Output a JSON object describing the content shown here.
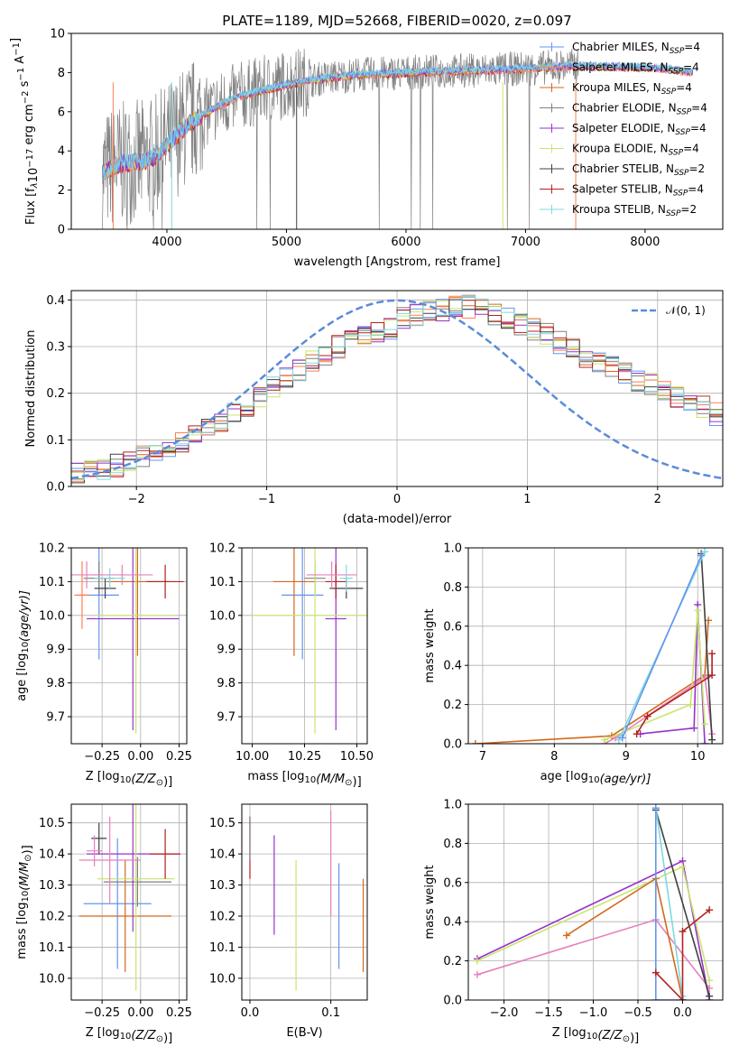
{
  "figure": {
    "title": "PLATE=1189, MJD=52668, FIBERID=0020, z=0.097"
  },
  "colors": {
    "Chabrier MILES": "#6495ed",
    "Salpeter MILES": "#ff7f50",
    "Kroupa MILES": "#d2691e",
    "Chabrier ELODIE": "#808080",
    "Salpeter ELODIE": "#9932cc",
    "Kroupa ELODIE": "#c8e66e",
    "Chabrier STELIB": "#404040",
    "Salpeter STELIB": "#b22222",
    "Kroupa STELIB": "#7fd8e0",
    "observed": "#808080",
    "extra_pink": "#e87fbf",
    "normal_curve": "#5b8bd8",
    "grid": "#b0b0b0"
  },
  "chart_data": [
    {
      "type": "line",
      "name": "spectrum",
      "xlabel": "wavelength [Angstrom, rest frame]",
      "ylabel": "Flux [f",
      "ylabel_parts": [
        "λ",
        "10",
        "−17",
        " erg cm",
        "−2",
        " s",
        "−1",
        " A",
        "−1",
        "]"
      ],
      "xlim": [
        3200,
        8650
      ],
      "ylim": [
        0,
        10
      ],
      "xticks": [
        "4000",
        "5000",
        "6000",
        "7000",
        "8000"
      ],
      "yticks": [
        "0",
        "2",
        "4",
        "6",
        "8",
        "10"
      ],
      "legend_position": "top-right",
      "legend": [
        {
          "name": "Chabrier MILES",
          "n": "4",
          "color": "#6495ed"
        },
        {
          "name": "Salpeter MILES",
          "n": "4",
          "color": "#ff7f50"
        },
        {
          "name": "Kroupa MILES",
          "n": "4",
          "color": "#d2691e"
        },
        {
          "name": "Chabrier ELODIE",
          "n": "4",
          "color": "#808080"
        },
        {
          "name": "Salpeter ELODIE",
          "n": "4",
          "color": "#9932cc"
        },
        {
          "name": "Kroupa ELODIE",
          "n": "4",
          "color": "#c8e66e"
        },
        {
          "name": "Chabrier STELIB",
          "n": "2",
          "color": "#404040"
        },
        {
          "name": "Salpeter STELIB",
          "n": "4",
          "color": "#b22222"
        },
        {
          "name": "Kroupa STELIB",
          "n": "2",
          "color": "#7fd8e0"
        }
      ],
      "legend_sub": "SSP",
      "continuum": [
        [
          3450,
          2.8
        ],
        [
          3550,
          3.2
        ],
        [
          3650,
          3.4
        ],
        [
          3800,
          3.5
        ],
        [
          3900,
          3.7
        ],
        [
          4000,
          4.3
        ],
        [
          4200,
          5.5
        ],
        [
          4400,
          6.2
        ],
        [
          4600,
          6.8
        ],
        [
          4800,
          7.1
        ],
        [
          5000,
          7.4
        ],
        [
          5300,
          7.7
        ],
        [
          5600,
          7.9
        ],
        [
          6000,
          8.0
        ],
        [
          6500,
          8.1
        ],
        [
          7000,
          8.2
        ],
        [
          7400,
          8.35
        ],
        [
          7800,
          8.3
        ],
        [
          8200,
          8.2
        ],
        [
          8400,
          8.0
        ]
      ]
    },
    {
      "type": "bar",
      "name": "residual-histogram",
      "xlabel": "(data-model)/error",
      "ylabel": "Normed distribution",
      "xlim": [
        -2.5,
        2.5
      ],
      "ylim": [
        0,
        0.42
      ],
      "xticks": [
        "−2",
        "−1",
        "0",
        "1",
        "2"
      ],
      "yticks": [
        "0.0",
        "0.1",
        "0.2",
        "0.3",
        "0.4"
      ],
      "bin_width": 0.1,
      "bin_start": -2.5,
      "bins_shape": [
        0.025,
        0.03,
        0.035,
        0.045,
        0.055,
        0.065,
        0.075,
        0.085,
        0.095,
        0.11,
        0.125,
        0.14,
        0.155,
        0.17,
        0.19,
        0.21,
        0.23,
        0.25,
        0.27,
        0.28,
        0.3,
        0.31,
        0.32,
        0.33,
        0.34,
        0.36,
        0.37,
        0.375,
        0.38,
        0.385,
        0.385,
        0.38,
        0.37,
        0.36,
        0.345,
        0.335,
        0.325,
        0.31,
        0.295,
        0.28,
        0.27,
        0.255,
        0.245,
        0.23,
        0.22,
        0.205,
        0.19,
        0.18,
        0.17,
        0.155,
        0.14
      ],
      "legend": [
        {
          "name": "𝒩(0, 1)",
          "color": "#5b8bd8",
          "style": "dashed"
        }
      ],
      "legend_position": "top-right"
    },
    {
      "type": "scatter",
      "name": "age-vs-Z",
      "xlabel": "Z [log",
      "xlabel_parts": [
        "10",
        "(Z/Z",
        "⊙",
        ")]"
      ],
      "ylabel": "age  [log",
      "ylabel_parts": [
        "10",
        "(age/yr)]"
      ],
      "xlim": [
        -0.45,
        0.3
      ],
      "ylim": [
        9.62,
        10.2
      ],
      "xticks": [
        "−0.25",
        "0.00",
        "0.25"
      ],
      "xtick_values": [
        -0.25,
        0.0,
        0.25
      ],
      "yticks": [
        "9.7",
        "9.8",
        "9.9",
        "10.0",
        "10.1",
        "10.2"
      ],
      "ytick_values": [
        9.7,
        9.8,
        9.9,
        10.0,
        10.1,
        10.2
      ],
      "points": [
        {
          "x": -0.27,
          "y": 10.06,
          "xerr": 0.13,
          "yerr": 0.19,
          "color": "#6495ed"
        },
        {
          "x": -0.02,
          "y": 10.1,
          "xerr": 0.2,
          "yerr": 0.22,
          "color": "#d2691e"
        },
        {
          "x": -0.27,
          "y": 10.11,
          "xerr": 0.1,
          "yerr": 0.05,
          "color": "#808080"
        },
        {
          "x": -0.05,
          "y": 9.99,
          "xerr": 0.3,
          "yerr": 0.33,
          "color": "#9932cc"
        },
        {
          "x": -0.03,
          "y": 10.0,
          "xerr": 0.25,
          "yerr": 0.35,
          "color": "#c8e66e"
        },
        {
          "x": -0.23,
          "y": 10.08,
          "xerr": 0.07,
          "yerr": 0.03,
          "color": "#404040"
        },
        {
          "x": 0.16,
          "y": 10.1,
          "xerr": 0.12,
          "yerr": 0.05,
          "color": "#b22222"
        },
        {
          "x": -0.35,
          "y": 10.12,
          "xerr": 0.1,
          "yerr": 0.04,
          "color": "#e87fbf"
        },
        {
          "x": -0.12,
          "y": 10.12,
          "xerr": 0.2,
          "yerr": 0.03,
          "color": "#e87fbf"
        },
        {
          "x": -0.2,
          "y": 10.11,
          "xerr": 0.1,
          "yerr": 0.03,
          "color": "#7fd8e0"
        },
        {
          "x": -0.38,
          "y": 10.06,
          "xerr": 0.05,
          "yerr": 0.1,
          "color": "#ff7f50"
        }
      ]
    },
    {
      "type": "scatter",
      "name": "age-vs-mass",
      "xlabel": "mass [log",
      "xlabel_parts": [
        "10",
        "(M/M",
        "⊙",
        ")]"
      ],
      "xlim": [
        9.95,
        10.55
      ],
      "ylim": [
        9.62,
        10.2
      ],
      "xticks": [
        "10.00",
        "10.25",
        "10.50"
      ],
      "xtick_values": [
        10.0,
        10.25,
        10.5
      ],
      "yticks": [
        "9.7",
        "9.8",
        "9.9",
        "10.0",
        "10.1",
        "10.2"
      ],
      "ytick_values": [
        9.7,
        9.8,
        9.9,
        10.0,
        10.1,
        10.2
      ],
      "points": [
        {
          "x": 10.24,
          "y": 10.06,
          "xerr": 0.1,
          "yerr": 0.19,
          "color": "#6495ed"
        },
        {
          "x": 10.2,
          "y": 10.1,
          "xerr": 0.1,
          "yerr": 0.22,
          "color": "#d2691e"
        },
        {
          "x": 10.3,
          "y": 10.11,
          "xerr": 0.05,
          "yerr": 0.05,
          "color": "#808080"
        },
        {
          "x": 10.4,
          "y": 9.99,
          "xerr": 0.05,
          "yerr": 0.33,
          "color": "#9932cc"
        },
        {
          "x": 10.3,
          "y": 10.0,
          "xerr": 0.3,
          "yerr": 0.35,
          "color": "#c8e66e"
        },
        {
          "x": 10.45,
          "y": 10.08,
          "xerr": 0.08,
          "yerr": 0.03,
          "color": "#404040"
        },
        {
          "x": 10.4,
          "y": 10.1,
          "xerr": 0.05,
          "yerr": 0.05,
          "color": "#b22222"
        },
        {
          "x": 10.38,
          "y": 10.12,
          "xerr": 0.12,
          "yerr": 0.04,
          "color": "#e87fbf"
        },
        {
          "x": 10.45,
          "y": 10.11,
          "xerr": 0.03,
          "yerr": 0.04,
          "color": "#7fd8e0"
        }
      ]
    },
    {
      "type": "line",
      "name": "mass-weight-vs-age",
      "xlabel": "age  [log",
      "xlabel_parts": [
        "10",
        "(age/yr)]"
      ],
      "ylabel": "mass weight",
      "xlim": [
        6.8,
        10.35
      ],
      "ylim": [
        0,
        1.0
      ],
      "xticks": [
        "7",
        "8",
        "9",
        "10"
      ],
      "xtick_values": [
        7,
        8,
        9,
        10
      ],
      "yticks": [
        "0.0",
        "0.2",
        "0.4",
        "0.6",
        "0.8",
        "1.0"
      ],
      "ytick_values": [
        0,
        0.2,
        0.4,
        0.6,
        0.8,
        1.0
      ],
      "series": [
        {
          "color": "#d2691e",
          "points": [
            [
              6.9,
              0.0
            ],
            [
              8.8,
              0.04
            ],
            [
              10.1,
              0.35
            ],
            [
              10.15,
              0.63
            ]
          ]
        },
        {
          "color": "#e87fbf",
          "points": [
            [
              8.7,
              0.0
            ],
            [
              8.85,
              0.03
            ],
            [
              10.1,
              0.34
            ],
            [
              10.2,
              0.05
            ]
          ]
        },
        {
          "color": "#9932cc",
          "points": [
            [
              9.2,
              0.05
            ],
            [
              9.95,
              0.08
            ],
            [
              10.0,
              0.71
            ],
            [
              10.1,
              0.0
            ]
          ]
        },
        {
          "color": "#c8e66e",
          "points": [
            [
              8.7,
              0.02
            ],
            [
              9.9,
              0.2
            ],
            [
              10.0,
              0.68
            ],
            [
              10.1,
              0.1
            ]
          ]
        },
        {
          "color": "#b22222",
          "points": [
            [
              9.15,
              0.05
            ],
            [
              9.3,
              0.14
            ],
            [
              10.2,
              0.35
            ],
            [
              10.2,
              0.46
            ]
          ]
        },
        {
          "color": "#404040",
          "points": [
            [
              10.05,
              0.97
            ],
            [
              10.2,
              0.02
            ]
          ]
        },
        {
          "color": "#7fd8e0",
          "points": [
            [
              8.9,
              0.02
            ],
            [
              10.1,
              0.98
            ]
          ]
        },
        {
          "color": "#6495ed",
          "points": [
            [
              8.95,
              0.03
            ],
            [
              10.05,
              0.96
            ]
          ]
        }
      ]
    },
    {
      "type": "scatter",
      "name": "mass-vs-Z",
      "xlabel": "Z [log",
      "xlabel_parts": [
        "10",
        "(Z/Z",
        "⊙",
        ")]"
      ],
      "ylabel": "mass [log",
      "ylabel_parts": [
        "10",
        "(M/M",
        "⊙",
        ")]"
      ],
      "xlim": [
        -0.45,
        0.3
      ],
      "ylim": [
        9.93,
        10.56
      ],
      "xticks": [
        "−0.25",
        "0.00",
        "0.25"
      ],
      "xtick_values": [
        -0.25,
        0.0,
        0.25
      ],
      "yticks": [
        "10.0",
        "10.1",
        "10.2",
        "10.3",
        "10.4",
        "10.5"
      ],
      "ytick_values": [
        10.0,
        10.1,
        10.2,
        10.3,
        10.4,
        10.5
      ],
      "points": [
        {
          "x": -0.15,
          "y": 10.24,
          "xerr": 0.22,
          "yerr": 0.21,
          "color": "#6495ed"
        },
        {
          "x": -0.1,
          "y": 10.2,
          "xerr": 0.3,
          "yerr": 0.18,
          "color": "#d2691e"
        },
        {
          "x": -0.02,
          "y": 10.31,
          "xerr": 0.22,
          "yerr": 0.08,
          "color": "#808080"
        },
        {
          "x": -0.05,
          "y": 10.4,
          "xerr": 0.3,
          "yerr": 0.25,
          "color": "#9932cc"
        },
        {
          "x": -0.03,
          "y": 10.32,
          "xerr": 0.25,
          "yerr": 0.36,
          "color": "#c8e66e"
        },
        {
          "x": -0.27,
          "y": 10.45,
          "xerr": 0.05,
          "yerr": 0.05,
          "color": "#404040"
        },
        {
          "x": 0.16,
          "y": 10.4,
          "xerr": 0.1,
          "yerr": 0.08,
          "color": "#b22222"
        },
        {
          "x": -0.2,
          "y": 10.38,
          "xerr": 0.2,
          "yerr": 0.14,
          "color": "#e87fbf"
        },
        {
          "x": -0.3,
          "y": 10.41,
          "xerr": 0.05,
          "yerr": 0.05,
          "color": "#e87fbf"
        }
      ]
    },
    {
      "type": "scatter",
      "name": "mass-vs-ebv",
      "xlabel": "E(B-V)",
      "xlim": [
        -0.01,
        0.145
      ],
      "ylim": [
        9.93,
        10.56
      ],
      "xticks": [
        "0.0",
        "0.1"
      ],
      "xtick_values": [
        0.0,
        0.1
      ],
      "yticks": [
        "10.0",
        "10.1",
        "10.2",
        "10.3",
        "10.4",
        "10.5"
      ],
      "ytick_values": [
        10.0,
        10.1,
        10.2,
        10.3,
        10.4,
        10.5
      ],
      "points": [
        {
          "x": 0.0,
          "y": 10.42,
          "xerr": 0,
          "yerr": 0.1,
          "color": "#b22222"
        },
        {
          "x": 0.0,
          "y": 10.45,
          "xerr": 0,
          "yerr": 0.07,
          "color": "#808080"
        },
        {
          "x": 0.03,
          "y": 10.3,
          "xerr": 0,
          "yerr": 0.16,
          "color": "#9932cc"
        },
        {
          "x": 0.057,
          "y": 10.17,
          "xerr": 0,
          "yerr": 0.21,
          "color": "#c8e66e"
        },
        {
          "x": 0.1,
          "y": 10.37,
          "xerr": 0,
          "yerr": 0.17,
          "color": "#e87fbf"
        },
        {
          "x": 0.11,
          "y": 10.2,
          "xerr": 0,
          "yerr": 0.17,
          "color": "#6495ed"
        },
        {
          "x": 0.14,
          "y": 10.17,
          "xerr": 0,
          "yerr": 0.15,
          "color": "#d2691e"
        }
      ]
    },
    {
      "type": "line",
      "name": "mass-weight-vs-Z",
      "xlabel": "Z [log",
      "xlabel_parts": [
        "10",
        "(Z/Z",
        "⊙",
        ")]"
      ],
      "ylabel": "mass weight",
      "xlim": [
        -2.4,
        0.45
      ],
      "ylim": [
        0,
        1.0
      ],
      "xticks": [
        "−2.0",
        "−1.5",
        "−1.0",
        "−0.5",
        "0.0"
      ],
      "xtick_values": [
        -2.0,
        -1.5,
        -1.0,
        -0.5,
        0.0
      ],
      "yticks": [
        "0.0",
        "0.2",
        "0.4",
        "0.6",
        "0.8",
        "1.0"
      ],
      "ytick_values": [
        0,
        0.2,
        0.4,
        0.6,
        0.8,
        1.0
      ],
      "series": [
        {
          "color": "#9932cc",
          "points": [
            [
              -2.3,
              0.21
            ],
            [
              0.0,
              0.71
            ],
            [
              0.3,
              0.0
            ]
          ]
        },
        {
          "color": "#c8e66e",
          "points": [
            [
              -2.3,
              0.2
            ],
            [
              0.0,
              0.68
            ],
            [
              0.3,
              0.1
            ]
          ]
        },
        {
          "color": "#e87fbf",
          "points": [
            [
              -2.3,
              0.13
            ],
            [
              -0.3,
              0.41
            ],
            [
              0.3,
              0.06
            ]
          ]
        },
        {
          "color": "#d2691e",
          "points": [
            [
              -1.3,
              0.33
            ],
            [
              -0.3,
              0.62
            ],
            [
              0.0,
              0.0
            ]
          ]
        },
        {
          "color": "#404040",
          "points": [
            [
              -0.3,
              0.97
            ],
            [
              0.3,
              0.02
            ]
          ]
        },
        {
          "color": "#7fd8e0",
          "points": [
            [
              -0.3,
              0.98
            ],
            [
              0.0,
              0.02
            ]
          ]
        },
        {
          "color": "#6495ed",
          "points": [
            [
              -0.3,
              0.98
            ],
            [
              -0.3,
              0.0
            ],
            [
              0.0,
              0.0
            ]
          ]
        },
        {
          "color": "#b22222",
          "points": [
            [
              -0.3,
              0.14
            ],
            [
              0.0,
              0.0
            ],
            [
              0.0,
              0.35
            ],
            [
              0.3,
              0.46
            ]
          ]
        }
      ]
    }
  ]
}
